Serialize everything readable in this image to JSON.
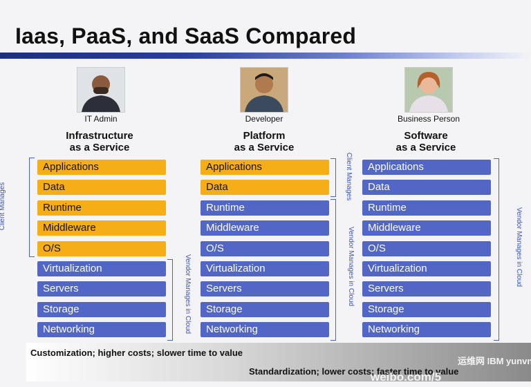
{
  "title": "Iaas, PaaS, and SaaS Compared",
  "columns": [
    {
      "persona": "IT Admin",
      "title_line1": "Infrastructure",
      "title_line2": "as a Service",
      "layers": [
        "Applications",
        "Data",
        "Runtime",
        "Middleware",
        "O/S",
        "Virtualization",
        "Servers",
        "Storage",
        "Networking"
      ],
      "client_count": 5,
      "client_label": "Client Manages",
      "vendor_label": "Vendor Manages in Cloud"
    },
    {
      "persona": "Developer",
      "title_line1": "Platform",
      "title_line2": "as a Service",
      "layers": [
        "Applications",
        "Data",
        "Runtime",
        "Middleware",
        "O/S",
        "Virtualization",
        "Servers",
        "Storage",
        "Networking"
      ],
      "client_count": 2,
      "client_label": "Client Manages",
      "vendor_label": "Vendor Manages in Cloud"
    },
    {
      "persona": "Business Person",
      "title_line1": "Software",
      "title_line2": "as a Service",
      "layers": [
        "Applications",
        "Data",
        "Runtime",
        "Middleware",
        "O/S",
        "Virtualization",
        "Servers",
        "Storage",
        "Networking"
      ],
      "client_count": 0,
      "vendor_label": "Vendor Manages in Cloud"
    }
  ],
  "band": {
    "top": "Customization;  higher costs;  slower time to value",
    "bottom": "Standardization;  lower costs;  faster time to value"
  },
  "watermark": {
    "text": "weibo.com/5",
    "logo": "运维网 IBM yunvn.com"
  },
  "colors": {
    "client": "#f5ae16",
    "vendor": "#5266c6",
    "brace": "#4a63c8"
  }
}
